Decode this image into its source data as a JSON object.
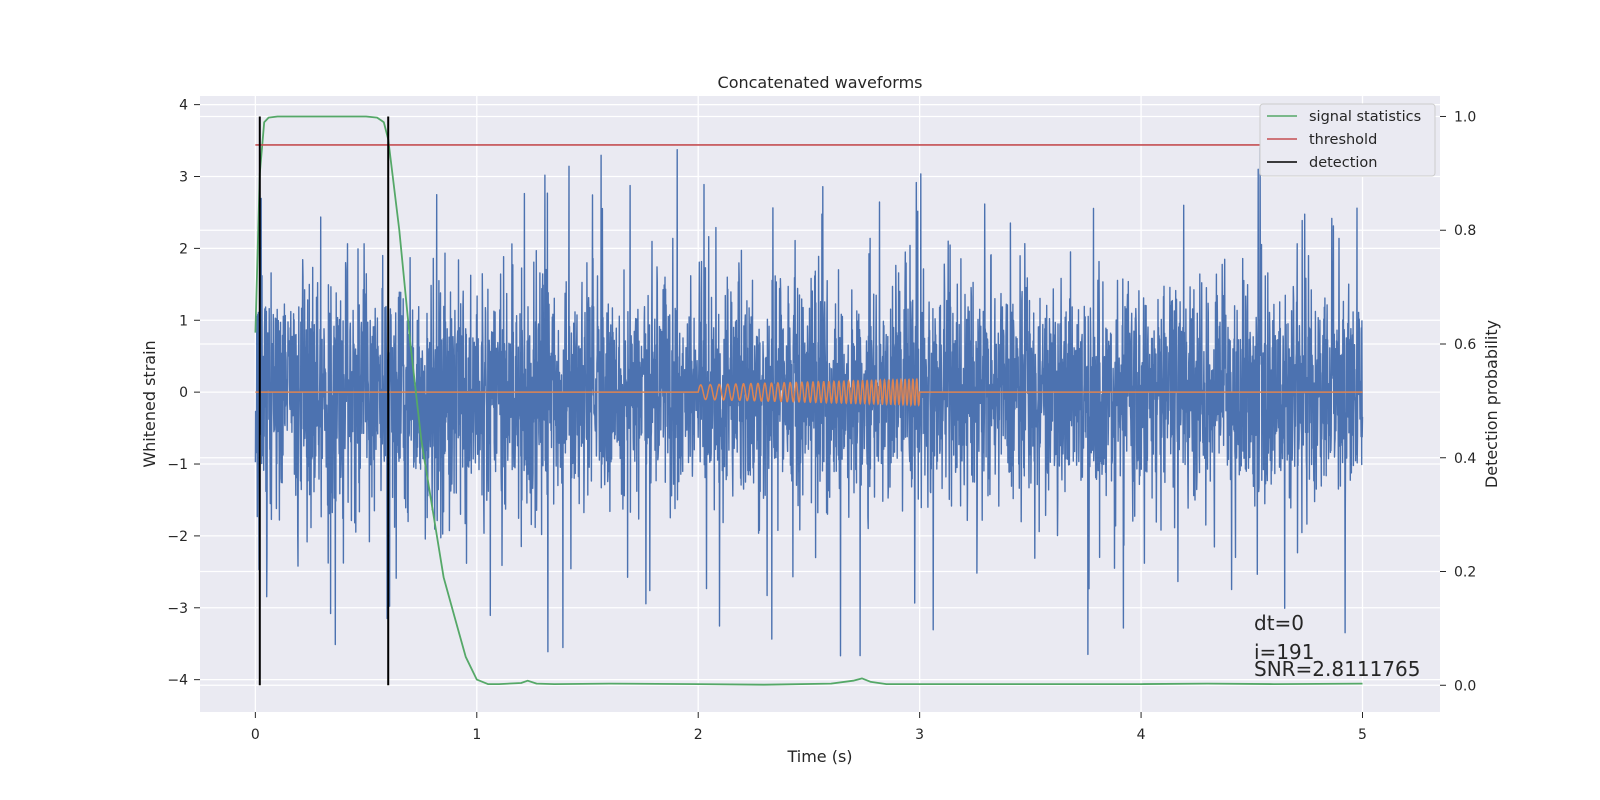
{
  "chart_data": {
    "type": "line",
    "title": "Concatenated waveforms",
    "xlabel": "Time (s)",
    "ylabel": "Whitened strain",
    "ylabel_right": "Detection probability",
    "xlim": [
      -0.25,
      5.35
    ],
    "ylim": [
      -4.45,
      4.12
    ],
    "ylim_right": [
      -0.047,
      1.036
    ],
    "x_ticks": [
      0,
      1,
      2,
      3,
      4,
      5
    ],
    "y_ticks": [
      -4,
      -3,
      -2,
      -1,
      0,
      1,
      2,
      3,
      4
    ],
    "y_ticks_right": [
      0.0,
      0.2,
      0.4,
      0.6,
      0.8,
      1.0
    ],
    "x_tick_labels": [
      "0",
      "1",
      "2",
      "3",
      "4",
      "5"
    ],
    "y_tick_labels": [
      "−4",
      "−3",
      "−2",
      "−1",
      "0",
      "1",
      "2",
      "3",
      "4"
    ],
    "y_tick_labels_right": [
      "0.0",
      "0.2",
      "0.4",
      "0.6",
      "0.8",
      "1.0"
    ],
    "grid": true,
    "legend_position": "top-right",
    "legend": [
      "signal statistics",
      "threshold",
      "detection"
    ],
    "colors": {
      "strain": "#4c72b0",
      "template": "#dd8452",
      "signal_statistics": "#55a868",
      "threshold": "#c44e52",
      "detection": "#000000",
      "background": "#eaeaf2",
      "grid": "#ffffff"
    },
    "series": [
      {
        "name": "",
        "axis": "left",
        "description": "whitened strain noise, time 0 to 5 s, amplitude roughly within ±2.5 with spikes to ±4",
        "x_range": [
          0,
          5
        ],
        "amplitude_sigma": 0.8
      },
      {
        "name": "",
        "axis": "left",
        "x": [
          0,
          2.0,
          2.0,
          2.5,
          3.0,
          3.0,
          5.0
        ],
        "amplitude": [
          0,
          0,
          0.1,
          0.14,
          0.18,
          0,
          0
        ],
        "chirp_freq_start_hz": 22,
        "chirp_freq_end_hz": 58
      },
      {
        "name": "signal statistics",
        "axis": "right",
        "x": [
          0.0,
          0.02,
          0.04,
          0.06,
          0.1,
          0.2,
          0.4,
          0.5,
          0.55,
          0.58,
          0.6,
          0.65,
          0.7,
          0.75,
          0.8,
          0.85,
          0.9,
          0.95,
          1.0,
          1.05,
          1.1,
          1.2,
          1.23,
          1.27,
          1.35,
          1.6,
          2.0,
          2.3,
          2.6,
          2.7,
          2.74,
          2.78,
          2.85,
          3.0,
          3.5,
          4.0,
          4.3,
          4.6,
          5.0
        ],
        "y": [
          0.62,
          0.9,
          0.99,
          0.998,
          1.0,
          1.0,
          1.0,
          1.0,
          0.998,
          0.99,
          0.96,
          0.8,
          0.6,
          0.43,
          0.31,
          0.19,
          0.12,
          0.05,
          0.01,
          0.002,
          0.002,
          0.004,
          0.008,
          0.003,
          0.002,
          0.003,
          0.002,
          0.001,
          0.003,
          0.008,
          0.012,
          0.006,
          0.002,
          0.002,
          0.002,
          0.002,
          0.003,
          0.002,
          0.003
        ]
      },
      {
        "name": "threshold",
        "axis": "right",
        "x": [
          0,
          5.1
        ],
        "y": [
          0.95,
          0.95
        ]
      },
      {
        "name": "detection",
        "axis": "right",
        "x": [
          0.02,
          0.6
        ],
        "ymin": 0.0,
        "ymax": 1.0
      }
    ],
    "annotations": [
      "dt=0",
      "i=191",
      "SNR=2.8111765"
    ]
  }
}
